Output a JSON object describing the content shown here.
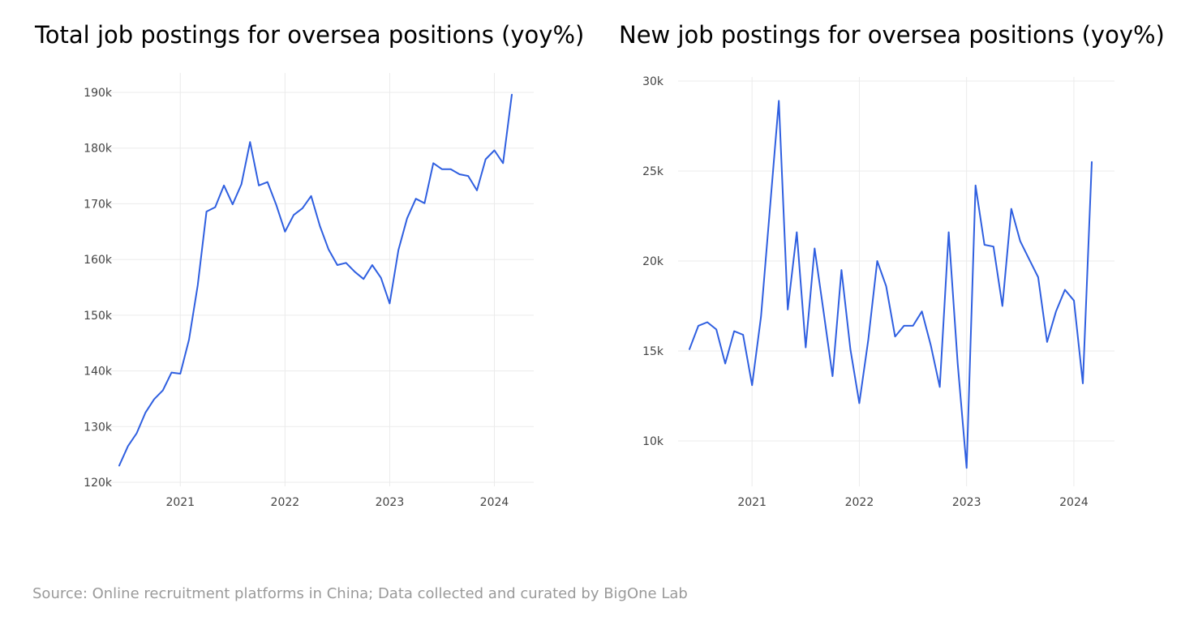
{
  "line_color": "#2f5fe0",
  "grid_color": "#ebebeb",
  "source": "Source: Online recruitment platforms in China; Data collected and curated by BigOne Lab",
  "chart_data": [
    {
      "type": "line",
      "title": "Total job postings for oversea positions (yoy%)",
      "xlabel": "",
      "ylabel": "",
      "grid": true,
      "x_ticks": [
        "2021",
        "2022",
        "2023",
        "2024"
      ],
      "x_tick_values": [
        "2021-01",
        "2022-01",
        "2023-01",
        "2024-01"
      ],
      "xlim": [
        "2020-06",
        "2024-03"
      ],
      "y_ticks": [
        120000,
        130000,
        140000,
        150000,
        160000,
        170000,
        180000,
        190000
      ],
      "y_tick_labels": [
        "120k",
        "130k",
        "140k",
        "150k",
        "160k",
        "170k",
        "180k",
        "190k"
      ],
      "ylim": [
        120000,
        190000
      ],
      "series": [
        {
          "x": [
            "2020-06",
            "2020-07",
            "2020-08",
            "2020-09",
            "2020-10",
            "2020-11",
            "2020-12",
            "2021-01",
            "2021-02",
            "2021-03",
            "2021-04",
            "2021-05",
            "2021-06",
            "2021-07",
            "2021-08",
            "2021-09",
            "2021-10",
            "2021-11",
            "2021-12",
            "2022-01",
            "2022-02",
            "2022-03",
            "2022-04",
            "2022-05",
            "2022-06",
            "2022-07",
            "2022-08",
            "2022-09",
            "2022-10",
            "2022-11",
            "2022-12",
            "2023-01",
            "2023-02",
            "2023-03",
            "2023-04",
            "2023-05",
            "2023-06",
            "2023-07",
            "2023-08",
            "2023-09",
            "2023-10",
            "2023-11",
            "2023-12",
            "2024-01",
            "2024-02",
            "2024-03"
          ],
          "values": [
            123000,
            126500,
            128800,
            132500,
            134900,
            136500,
            139700,
            139500,
            145600,
            155400,
            168600,
            169400,
            173300,
            169900,
            173500,
            181100,
            173300,
            173900,
            169800,
            165000,
            168000,
            169200,
            171400,
            166000,
            161800,
            159000,
            159400,
            157800,
            156500,
            159000,
            156700,
            152100,
            161700,
            167400,
            170900,
            170100,
            177300,
            176200,
            176200,
            175300,
            175000,
            172400,
            178000,
            179600,
            177300,
            189600
          ]
        }
      ]
    },
    {
      "type": "line",
      "title": "New job postings for oversea positions (yoy%)",
      "xlabel": "",
      "ylabel": "",
      "grid": true,
      "x_ticks": [
        "2021",
        "2022",
        "2023",
        "2024"
      ],
      "x_tick_values": [
        "2021-01",
        "2022-01",
        "2023-01",
        "2024-01"
      ],
      "xlim": [
        "2020-06",
        "2024-03"
      ],
      "y_ticks": [
        10000,
        15000,
        20000,
        25000,
        30000
      ],
      "y_tick_labels": [
        "10k",
        "15k",
        "20k",
        "25k",
        "30k"
      ],
      "ylim": [
        8000,
        30000
      ],
      "series": [
        {
          "x": [
            "2020-06",
            "2020-07",
            "2020-08",
            "2020-09",
            "2020-10",
            "2020-11",
            "2020-12",
            "2021-01",
            "2021-02",
            "2021-03",
            "2021-04",
            "2021-05",
            "2021-06",
            "2021-07",
            "2021-08",
            "2021-09",
            "2021-10",
            "2021-11",
            "2021-12",
            "2022-01",
            "2022-02",
            "2022-03",
            "2022-04",
            "2022-05",
            "2022-06",
            "2022-07",
            "2022-08",
            "2022-09",
            "2022-10",
            "2022-11",
            "2022-12",
            "2023-01",
            "2023-02",
            "2023-03",
            "2023-04",
            "2023-05",
            "2023-06",
            "2023-07",
            "2023-08",
            "2023-09",
            "2023-10",
            "2023-11",
            "2023-12",
            "2024-01",
            "2024-02",
            "2024-03"
          ],
          "values": [
            15100,
            16400,
            16600,
            16200,
            14300,
            16100,
            15900,
            13100,
            16900,
            22900,
            28900,
            17300,
            21600,
            15200,
            20700,
            17200,
            13600,
            19500,
            15100,
            12100,
            15600,
            20000,
            18600,
            15800,
            16400,
            16400,
            17200,
            15300,
            13000,
            21600,
            14300,
            8500,
            24200,
            20900,
            20800,
            17500,
            22900,
            21100,
            20100,
            19100,
            15500,
            17200,
            18400,
            17800,
            13200,
            25500
          ]
        }
      ]
    }
  ]
}
